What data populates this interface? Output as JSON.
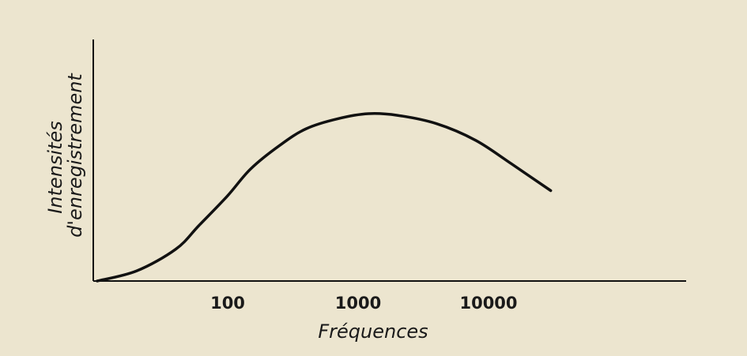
{
  "chart_data": {
    "type": "line",
    "title": "",
    "xlabel": "Fréquences",
    "ylabel_lines": [
      "Intensités",
      "d'enregistrement"
    ],
    "x_scale": "log",
    "x_ticks": [
      100,
      1000,
      10000
    ],
    "x_tick_labels": [
      "100",
      "1000",
      "10000"
    ],
    "xlim": [
      10,
      1000000
    ],
    "ylim": [
      0,
      1.1
    ],
    "y_ticks": [],
    "grid": false,
    "legend": "none",
    "series": [
      {
        "values": [
          {
            "x": 10,
            "y": 0.0
          },
          {
            "x": 20,
            "y": 0.06
          },
          {
            "x": 40,
            "y": 0.19
          },
          {
            "x": 60,
            "y": 0.33
          },
          {
            "x": 100,
            "y": 0.51
          },
          {
            "x": 150,
            "y": 0.67
          },
          {
            "x": 250,
            "y": 0.81
          },
          {
            "x": 400,
            "y": 0.91
          },
          {
            "x": 700,
            "y": 0.97
          },
          {
            "x": 1200,
            "y": 1.0
          },
          {
            "x": 2000,
            "y": 0.99
          },
          {
            "x": 4000,
            "y": 0.94
          },
          {
            "x": 8000,
            "y": 0.84
          },
          {
            "x": 15000,
            "y": 0.7
          },
          {
            "x": 30000,
            "y": 0.54
          }
        ]
      }
    ],
    "colors": {
      "background": "#ece5cf",
      "ink": "#111111"
    }
  }
}
